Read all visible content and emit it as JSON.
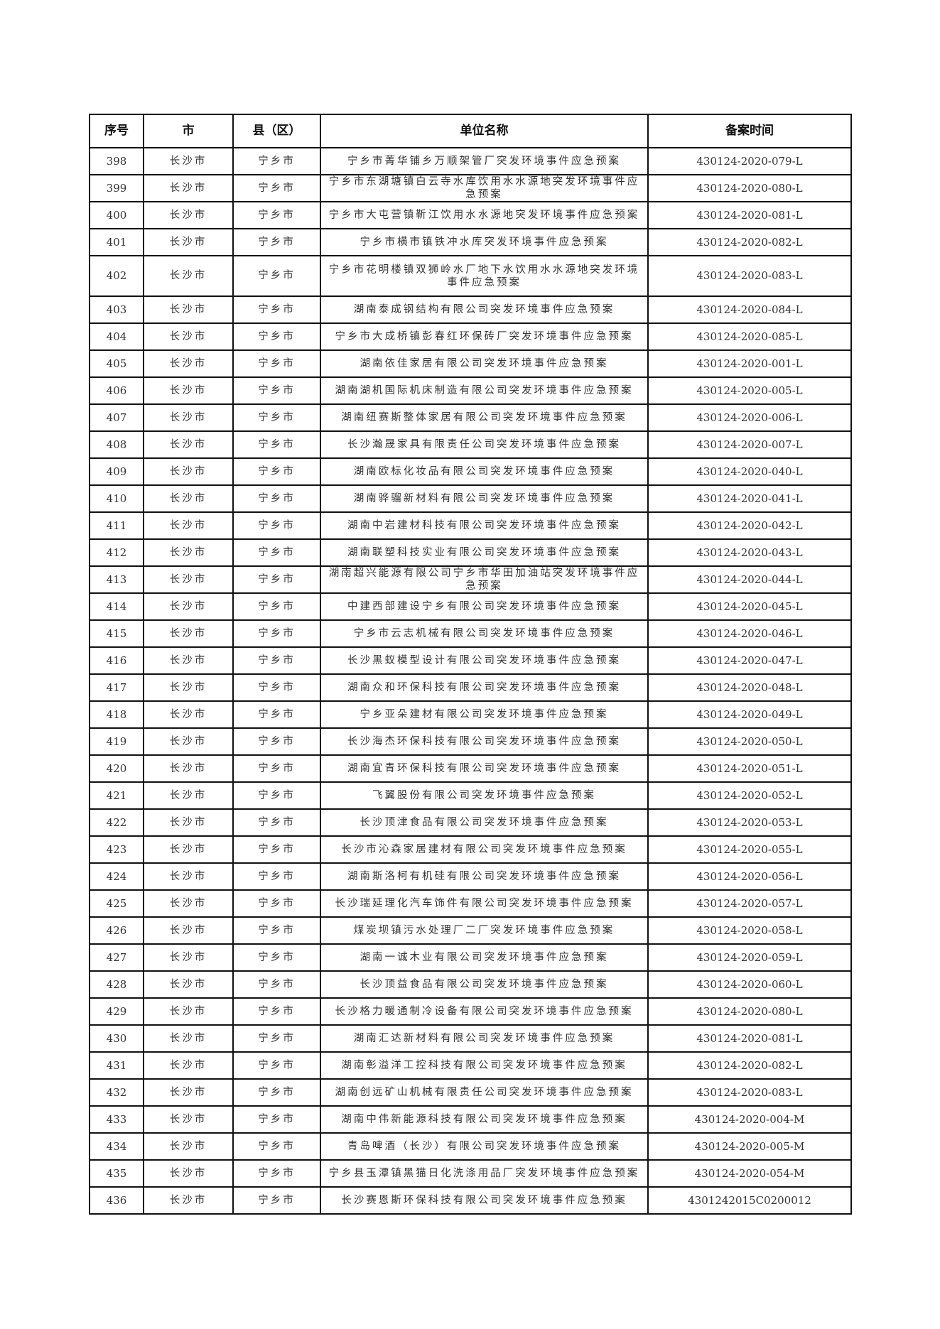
{
  "table": {
    "headers": [
      "序号",
      "市",
      "县（区）",
      "单位名称",
      "备案时间"
    ],
    "rows": [
      {
        "no": "398",
        "city": "长沙市",
        "county": "宁乡市",
        "name": "宁乡市菁华铺乡万顺架管厂突发环境事件应急预案",
        "record": "430124-2020-079-L"
      },
      {
        "no": "399",
        "city": "长沙市",
        "county": "宁乡市",
        "name": "宁乡市东湖塘镇白云寺水库饮用水水源地突发环境事件应急预案",
        "record": "430124-2020-080-L"
      },
      {
        "no": "400",
        "city": "长沙市",
        "county": "宁乡市",
        "name": "宁乡市大屯营镇靳江饮用水水源地突发环境事件应急预案",
        "record": "430124-2020-081-L"
      },
      {
        "no": "401",
        "city": "长沙市",
        "county": "宁乡市",
        "name": "宁乡市横市镇铁冲水库突发环境事件应急预案",
        "record": "430124-2020-082-L"
      },
      {
        "no": "402",
        "city": "长沙市",
        "county": "宁乡市",
        "name": "宁乡市花明楼镇双狮岭水厂地下水饮用水水源地突发环境事件应急预案",
        "record": "430124-2020-083-L"
      },
      {
        "no": "403",
        "city": "长沙市",
        "county": "宁乡市",
        "name": "湖南泰成钢结构有限公司突发环境事件应急预案",
        "record": "430124-2020-084-L"
      },
      {
        "no": "404",
        "city": "长沙市",
        "county": "宁乡市",
        "name": "宁乡市大成桥镇彭春红环保砖厂突发环境事件应急预案",
        "record": "430124-2020-085-L"
      },
      {
        "no": "405",
        "city": "长沙市",
        "county": "宁乡市",
        "name": "湖南依佳家居有限公司突发环境事件应急预案",
        "record": "430124-2020-001-L"
      },
      {
        "no": "406",
        "city": "长沙市",
        "county": "宁乡市",
        "name": "湖南湖机国际机床制造有限公司突发环境事件应急预案",
        "record": "430124-2020-005-L"
      },
      {
        "no": "407",
        "city": "长沙市",
        "county": "宁乡市",
        "name": "湖南纽赛斯整体家居有限公司突发环境事件应急预案",
        "record": "430124-2020-006-L"
      },
      {
        "no": "408",
        "city": "长沙市",
        "county": "宁乡市",
        "name": "长沙瀚晟家具有限责任公司突发环境事件应急预案",
        "record": "430124-2020-007-L"
      },
      {
        "no": "409",
        "city": "长沙市",
        "county": "宁乡市",
        "name": "湖南欧标化妆品有限公司突发环境事件应急预案",
        "record": "430124-2020-040-L"
      },
      {
        "no": "410",
        "city": "长沙市",
        "county": "宁乡市",
        "name": "湖南骅骝新材料有限公司突发环境事件应急预案",
        "record": "430124-2020-041-L"
      },
      {
        "no": "411",
        "city": "长沙市",
        "county": "宁乡市",
        "name": "湖南中岩建材科技有限公司突发环境事件应急预案",
        "record": "430124-2020-042-L"
      },
      {
        "no": "412",
        "city": "长沙市",
        "county": "宁乡市",
        "name": "湖南联塑科技实业有限公司突发环境事件应急预案",
        "record": "430124-2020-043-L"
      },
      {
        "no": "413",
        "city": "长沙市",
        "county": "宁乡市",
        "name": "湖南超兴能源有限公司宁乡市华田加油站突发环境事件应急预案",
        "record": "430124-2020-044-L"
      },
      {
        "no": "414",
        "city": "长沙市",
        "county": "宁乡市",
        "name": "中建西部建设宁乡有限公司突发环境事件应急预案",
        "record": "430124-2020-045-L"
      },
      {
        "no": "415",
        "city": "长沙市",
        "county": "宁乡市",
        "name": "宁乡市云志机械有限公司突发环境事件应急预案",
        "record": "430124-2020-046-L"
      },
      {
        "no": "416",
        "city": "长沙市",
        "county": "宁乡市",
        "name": "长沙黑蚁模型设计有限公司突发环境事件应急预案",
        "record": "430124-2020-047-L"
      },
      {
        "no": "417",
        "city": "长沙市",
        "county": "宁乡市",
        "name": "湖南众和环保科技有限公司突发环境事件应急预案",
        "record": "430124-2020-048-L"
      },
      {
        "no": "418",
        "city": "长沙市",
        "county": "宁乡市",
        "name": "宁乡亚朵建材有限公司突发环境事件应急预案",
        "record": "430124-2020-049-L"
      },
      {
        "no": "419",
        "city": "长沙市",
        "county": "宁乡市",
        "name": "长沙海杰环保科技有限公司突发环境事件应急预案",
        "record": "430124-2020-050-L"
      },
      {
        "no": "420",
        "city": "长沙市",
        "county": "宁乡市",
        "name": "湖南宜青环保科技有限公司突发环境事件应急预案",
        "record": "430124-2020-051-L"
      },
      {
        "no": "421",
        "city": "长沙市",
        "county": "宁乡市",
        "name": "飞翼股份有限公司突发环境事件应急预案",
        "record": "430124-2020-052-L"
      },
      {
        "no": "422",
        "city": "长沙市",
        "county": "宁乡市",
        "name": "长沙顶津食品有限公司突发环境事件应急预案",
        "record": "430124-2020-053-L"
      },
      {
        "no": "423",
        "city": "长沙市",
        "county": "宁乡市",
        "name": "长沙市沁森家居建材有限公司突发环境事件应急预案",
        "record": "430124-2020-055-L"
      },
      {
        "no": "424",
        "city": "长沙市",
        "county": "宁乡市",
        "name": "湖南斯洛柯有机硅有限公司突发环境事件应急预案",
        "record": "430124-2020-056-L"
      },
      {
        "no": "425",
        "city": "长沙市",
        "county": "宁乡市",
        "name": "长沙瑞延理化汽车饰件有限公司突发环境事件应急预案",
        "record": "430124-2020-057-L"
      },
      {
        "no": "426",
        "city": "长沙市",
        "county": "宁乡市",
        "name": "煤炭坝镇污水处理厂二厂突发环境事件应急预案",
        "record": "430124-2020-058-L"
      },
      {
        "no": "427",
        "city": "长沙市",
        "county": "宁乡市",
        "name": "湖南一诚木业有限公司突发环境事件应急预案",
        "record": "430124-2020-059-L"
      },
      {
        "no": "428",
        "city": "长沙市",
        "county": "宁乡市",
        "name": "长沙顶益食品有限公司突发环境事件应急预案",
        "record": "430124-2020-060-L"
      },
      {
        "no": "429",
        "city": "长沙市",
        "county": "宁乡市",
        "name": "长沙格力暖通制冷设备有限公司突发环境事件应急预案",
        "record": "430124-2020-080-L"
      },
      {
        "no": "430",
        "city": "长沙市",
        "county": "宁乡市",
        "name": "湖南汇达新材料有限公司突发环境事件应急预案",
        "record": "430124-2020-081-L"
      },
      {
        "no": "431",
        "city": "长沙市",
        "county": "宁乡市",
        "name": "湖南彰溢洋工控科技有限公司突发环境事件应急预案",
        "record": "430124-2020-082-L"
      },
      {
        "no": "432",
        "city": "长沙市",
        "county": "宁乡市",
        "name": "湖南创远矿山机械有限责任公司突发环境事件应急预案",
        "record": "430124-2020-083-L"
      },
      {
        "no": "433",
        "city": "长沙市",
        "county": "宁乡市",
        "name": "湖南中伟新能源科技有限公司突发环境事件应急预案",
        "record": "430124-2020-004-M"
      },
      {
        "no": "434",
        "city": "长沙市",
        "county": "宁乡市",
        "name": "青岛啤酒（长沙）有限公司突发环境事件应急预案",
        "record": "430124-2020-005-M"
      },
      {
        "no": "435",
        "city": "长沙市",
        "county": "宁乡市",
        "name": "宁乡县玉潭镇黑猫日化洗涤用品厂突发环境事件应急预案",
        "record": "430124-2020-054-M"
      },
      {
        "no": "436",
        "city": "长沙市",
        "county": "宁乡市",
        "name": "长沙赛恩斯环保科技有限公司突发环境事件应急预案",
        "record": "4301242015C0200012"
      }
    ]
  }
}
